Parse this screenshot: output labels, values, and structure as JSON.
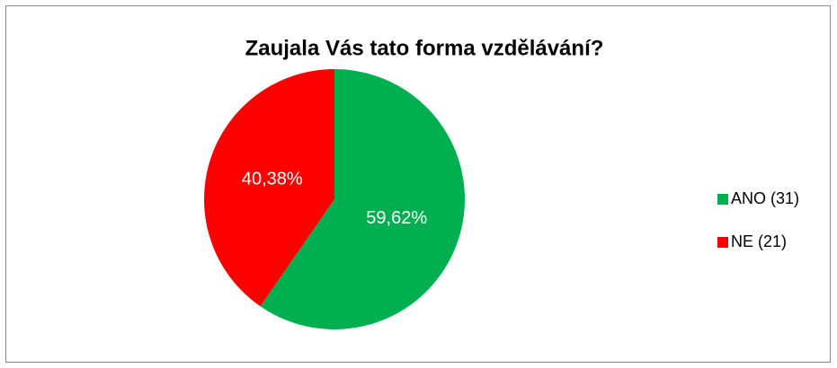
{
  "chart_data": {
    "type": "pie",
    "title": "Zaujala Vás tato forma vzdělávání?",
    "series": [
      {
        "name": "ANO (31)",
        "color": "#00b050"
      },
      {
        "name": "NE (21)",
        "color": "#ff0000"
      }
    ],
    "values": [
      59.62,
      40.38
    ],
    "value_labels": [
      "59,62%",
      "40,38%"
    ],
    "legend": "right"
  }
}
